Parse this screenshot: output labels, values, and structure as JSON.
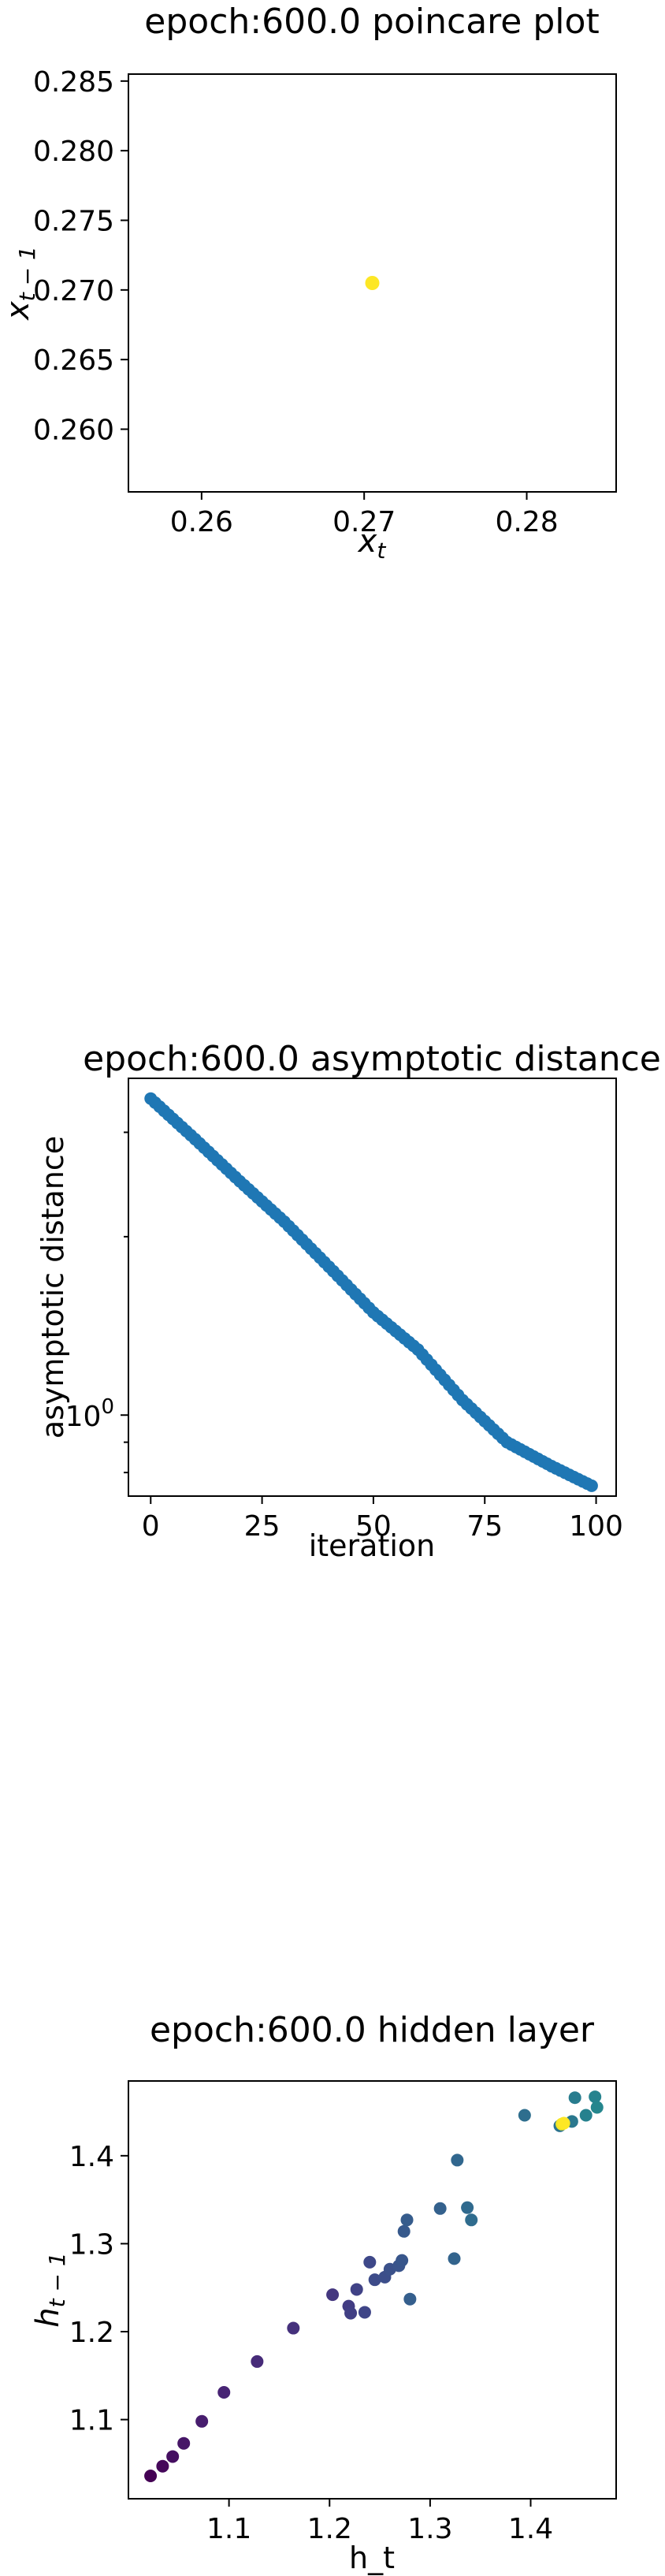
{
  "chart_data": [
    {
      "type": "scatter",
      "title": "epoch:600.0 poincare plot",
      "xlabel": "x_t",
      "ylabel": "x_{t-1}",
      "xlim": [
        0.2555,
        0.2855
      ],
      "ylim": [
        0.2555,
        0.2855
      ],
      "xticks": [
        0.26,
        0.27,
        0.28
      ],
      "yticks": [
        0.26,
        0.265,
        0.27,
        0.275,
        0.28,
        0.285
      ],
      "xtick_labels": [
        "0.26",
        "0.27",
        "0.28"
      ],
      "ytick_labels": [
        "0.260",
        "0.265",
        "0.270",
        "0.275",
        "0.280",
        "0.285"
      ],
      "color": "#fde725",
      "points": [
        [
          0.2705,
          0.2705
        ]
      ],
      "grid": false
    },
    {
      "type": "scatter",
      "title": "epoch:600.0 asymptotic distance",
      "xlabel": "iteration",
      "ylabel": "asymptotic distance",
      "xlim": [
        -5,
        104.5
      ],
      "yscale": "log",
      "ylim": [
        0.73,
        3.7
      ],
      "xticks": [
        0,
        25,
        50,
        75,
        100
      ],
      "xtick_labels": [
        "0",
        "25",
        "50",
        "75",
        "100"
      ],
      "ytick_major": {
        "value": 1,
        "label": "10^0"
      },
      "yminor_ticks": [
        0.8,
        0.9,
        2,
        3
      ],
      "color": "#1f77b4",
      "curve_points": [
        [
          0,
          3.42
        ],
        [
          10,
          2.92
        ],
        [
          20,
          2.48
        ],
        [
          30,
          2.12
        ],
        [
          40,
          1.78
        ],
        [
          50,
          1.49
        ],
        [
          60,
          1.29
        ],
        [
          70,
          1.06
        ],
        [
          80,
          0.9
        ],
        [
          90,
          0.82
        ],
        [
          99,
          0.76
        ]
      ],
      "n_points": 100,
      "grid": false
    },
    {
      "type": "scatter",
      "title": "epoch:600.0 hidden layer",
      "xlabel": "h_t",
      "ylabel": "h_{t-1}",
      "xlim": [
        1.0,
        1.485
      ],
      "ylim": [
        1.01,
        1.485
      ],
      "xticks": [
        1.1,
        1.2,
        1.3,
        1.4
      ],
      "yticks": [
        1.1,
        1.2,
        1.3,
        1.4
      ],
      "xtick_labels": [
        "1.1",
        "1.2",
        "1.3",
        "1.4"
      ],
      "ytick_labels": [
        "1.1",
        "1.2",
        "1.3",
        "1.4"
      ],
      "colormap": "viridis",
      "points": [
        {
          "x": 1.022,
          "y": 1.036,
          "c": 0.0
        },
        {
          "x": 1.034,
          "y": 1.047,
          "c": 0.02
        },
        {
          "x": 1.044,
          "y": 1.058,
          "c": 0.04
        },
        {
          "x": 1.055,
          "y": 1.073,
          "c": 0.06
        },
        {
          "x": 1.073,
          "y": 1.098,
          "c": 0.08
        },
        {
          "x": 1.095,
          "y": 1.131,
          "c": 0.1
        },
        {
          "x": 1.128,
          "y": 1.166,
          "c": 0.12
        },
        {
          "x": 1.164,
          "y": 1.204,
          "c": 0.14
        },
        {
          "x": 1.203,
          "y": 1.242,
          "c": 0.16
        },
        {
          "x": 1.219,
          "y": 1.229,
          "c": 0.18
        },
        {
          "x": 1.221,
          "y": 1.221,
          "c": 0.19
        },
        {
          "x": 1.227,
          "y": 1.248,
          "c": 0.2
        },
        {
          "x": 1.235,
          "y": 1.222,
          "c": 0.21
        },
        {
          "x": 1.24,
          "y": 1.279,
          "c": 0.22
        },
        {
          "x": 1.245,
          "y": 1.259,
          "c": 0.23
        },
        {
          "x": 1.255,
          "y": 1.262,
          "c": 0.24
        },
        {
          "x": 1.26,
          "y": 1.271,
          "c": 0.25
        },
        {
          "x": 1.269,
          "y": 1.275,
          "c": 0.26
        },
        {
          "x": 1.272,
          "y": 1.281,
          "c": 0.27
        },
        {
          "x": 1.274,
          "y": 1.314,
          "c": 0.28
        },
        {
          "x": 1.277,
          "y": 1.327,
          "c": 0.29
        },
        {
          "x": 1.28,
          "y": 1.237,
          "c": 0.3
        },
        {
          "x": 1.31,
          "y": 1.34,
          "c": 0.31
        },
        {
          "x": 1.324,
          "y": 1.283,
          "c": 0.32
        },
        {
          "x": 1.327,
          "y": 1.395,
          "c": 0.33
        },
        {
          "x": 1.337,
          "y": 1.341,
          "c": 0.34
        },
        {
          "x": 1.341,
          "y": 1.327,
          "c": 0.35
        },
        {
          "x": 1.394,
          "y": 1.446,
          "c": 0.36
        },
        {
          "x": 1.429,
          "y": 1.434,
          "c": 0.38
        },
        {
          "x": 1.441,
          "y": 1.439,
          "c": 0.4
        },
        {
          "x": 1.444,
          "y": 1.466,
          "c": 0.42
        },
        {
          "x": 1.455,
          "y": 1.446,
          "c": 0.44
        },
        {
          "x": 1.464,
          "y": 1.467,
          "c": 0.45
        },
        {
          "x": 1.466,
          "y": 1.455,
          "c": 0.46
        },
        {
          "x": 1.431,
          "y": 1.436,
          "c": 0.98
        },
        {
          "x": 1.433,
          "y": 1.437,
          "c": 1.0
        }
      ],
      "grid": false
    }
  ]
}
